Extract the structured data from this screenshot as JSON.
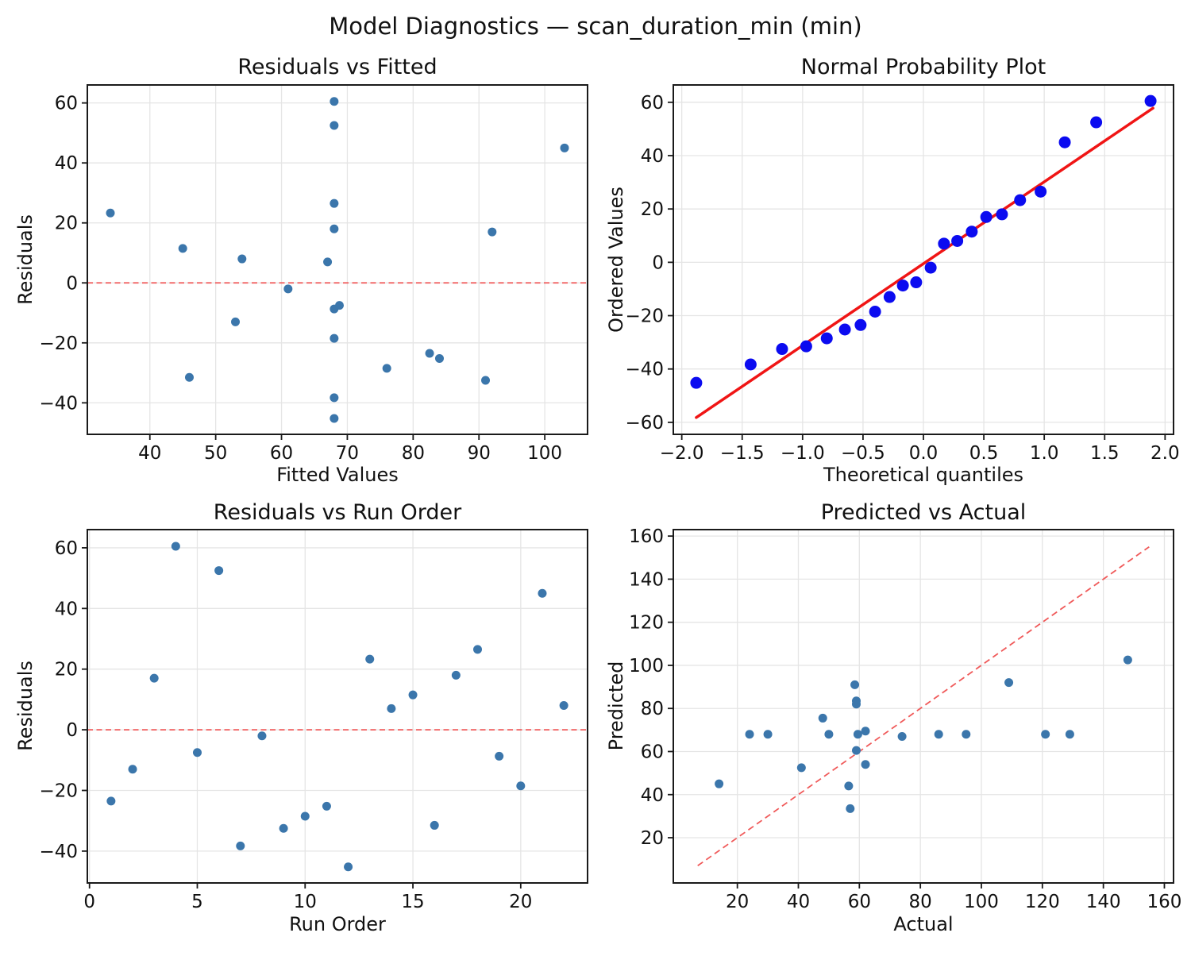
{
  "figure": {
    "suptitle": "Model Diagnostics — scan_duration_min (min)",
    "colors": {
      "background": "#ffffff",
      "scatter_point": "#3b76ab",
      "qq_point": "#0b0bf0",
      "fit_line_red": "#f01515",
      "dashed_red": "#f05a5a",
      "grid": "#e5e5e5",
      "spine": "#1a1a1a",
      "text": "#111111"
    }
  },
  "chart_data": [
    {
      "id": "residuals-vs-fitted",
      "type": "scatter",
      "title": "Residuals vs Fitted",
      "xlabel": "Fitted Values",
      "ylabel": "Residuals",
      "xlim": [
        30.5,
        106.5
      ],
      "ylim": [
        -50.5,
        66
      ],
      "grid": true,
      "xticks": [
        40,
        50,
        60,
        70,
        80,
        90,
        100
      ],
      "xtick_labels": [
        "40",
        "50",
        "60",
        "70",
        "80",
        "90",
        "100"
      ],
      "yticks": [
        -40,
        -20,
        0,
        20,
        40,
        60
      ],
      "ytick_labels": [
        "−40",
        "−20",
        "0",
        "20",
        "40",
        "60"
      ],
      "point_style": "scatter",
      "points": [
        [
          34,
          23.3
        ],
        [
          45,
          11.5
        ],
        [
          46,
          -31.5
        ],
        [
          53,
          -13
        ],
        [
          54,
          8
        ],
        [
          61,
          -2
        ],
        [
          67,
          7
        ],
        [
          68,
          60.5
        ],
        [
          68,
          52.5
        ],
        [
          68,
          26.5
        ],
        [
          68,
          18
        ],
        [
          68,
          -8.7
        ],
        [
          68.8,
          -7.5
        ],
        [
          68,
          -18.5
        ],
        [
          68,
          -38.3
        ],
        [
          68,
          -45.2
        ],
        [
          76,
          -28.5
        ],
        [
          82.5,
          -23.5
        ],
        [
          84,
          -25.2
        ],
        [
          91,
          -32.5
        ],
        [
          92,
          17
        ],
        [
          103,
          45
        ]
      ],
      "zero_line_y": 0
    },
    {
      "id": "normal-probability-plot",
      "type": "scatter",
      "title": "Normal Probability Plot",
      "xlabel": "Theoretical quantiles",
      "ylabel": "Ordered Values",
      "xlim": [
        -2.07,
        2.07
      ],
      "ylim": [
        -64.5,
        66.5
      ],
      "grid": true,
      "xticks": [
        -2.0,
        -1.5,
        -1.0,
        -0.5,
        0.0,
        0.5,
        1.0,
        1.5,
        2.0
      ],
      "xtick_labels": [
        "−2.0",
        "−1.5",
        "−1.0",
        "−0.5",
        "0.0",
        "0.5",
        "1.0",
        "1.5",
        "2.0"
      ],
      "yticks": [
        -60,
        -40,
        -20,
        0,
        20,
        40,
        60
      ],
      "ytick_labels": [
        "−60",
        "−40",
        "−20",
        "0",
        "20",
        "40",
        "60"
      ],
      "point_style": "qq",
      "points": [
        [
          -1.88,
          -45.2
        ],
        [
          -1.43,
          -38.3
        ],
        [
          -1.17,
          -32.5
        ],
        [
          -0.97,
          -31.5
        ],
        [
          -0.8,
          -28.5
        ],
        [
          -0.65,
          -25.2
        ],
        [
          -0.52,
          -23.5
        ],
        [
          -0.4,
          -18.5
        ],
        [
          -0.28,
          -13
        ],
        [
          -0.17,
          -8.7
        ],
        [
          -0.06,
          -7.5
        ],
        [
          0.06,
          -2
        ],
        [
          0.17,
          7
        ],
        [
          0.28,
          8
        ],
        [
          0.4,
          11.5
        ],
        [
          0.52,
          17
        ],
        [
          0.65,
          18
        ],
        [
          0.8,
          23.3
        ],
        [
          0.97,
          26.5
        ],
        [
          1.17,
          45
        ],
        [
          1.43,
          52.5
        ],
        [
          1.88,
          60.5
        ]
      ],
      "fit_line": {
        "x1": -1.88,
        "y1": -58.2,
        "x2": 1.9,
        "y2": 57.8
      }
    },
    {
      "id": "residuals-vs-run-order",
      "type": "scatter",
      "title": "Residuals vs Run Order",
      "xlabel": "Run Order",
      "ylabel": "Residuals",
      "xlim": [
        -0.1,
        23.1
      ],
      "ylim": [
        -50.5,
        66
      ],
      "grid": true,
      "xticks": [
        0,
        5,
        10,
        15,
        20
      ],
      "xtick_labels": [
        "0",
        "5",
        "10",
        "15",
        "20"
      ],
      "yticks": [
        -40,
        -20,
        0,
        20,
        40,
        60
      ],
      "ytick_labels": [
        "−40",
        "−20",
        "0",
        "20",
        "40",
        "60"
      ],
      "point_style": "scatter",
      "points": [
        [
          1,
          -23.5
        ],
        [
          2,
          -13
        ],
        [
          3,
          17
        ],
        [
          4,
          60.5
        ],
        [
          5,
          -7.5
        ],
        [
          6,
          52.5
        ],
        [
          7,
          -38.3
        ],
        [
          8,
          -2
        ],
        [
          9,
          -32.5
        ],
        [
          10,
          -28.5
        ],
        [
          11,
          -25.2
        ],
        [
          12,
          -45.2
        ],
        [
          13,
          23.3
        ],
        [
          14,
          7
        ],
        [
          15,
          11.5
        ],
        [
          16,
          -31.5
        ],
        [
          17,
          18
        ],
        [
          18,
          26.5
        ],
        [
          19,
          -8.7
        ],
        [
          20,
          -18.5
        ],
        [
          21,
          45
        ],
        [
          22,
          8
        ]
      ],
      "zero_line_y": 0
    },
    {
      "id": "predicted-vs-actual",
      "type": "scatter",
      "title": "Predicted vs Actual",
      "xlabel": "Actual",
      "ylabel": "Predicted",
      "xlim": [
        -1,
        163
      ],
      "ylim": [
        -1,
        163
      ],
      "grid": true,
      "xticks": [
        20,
        40,
        60,
        80,
        100,
        120,
        140,
        160
      ],
      "xtick_labels": [
        "20",
        "40",
        "60",
        "80",
        "100",
        "120",
        "140",
        "160"
      ],
      "yticks": [
        20,
        40,
        60,
        80,
        100,
        120,
        140,
        160
      ],
      "ytick_labels": [
        "20",
        "40",
        "60",
        "80",
        "100",
        "120",
        "140",
        "160"
      ],
      "point_style": "scatter",
      "points": [
        [
          14,
          45
        ],
        [
          24,
          68
        ],
        [
          30,
          68
        ],
        [
          41,
          52.5
        ],
        [
          48,
          75.5
        ],
        [
          50,
          68
        ],
        [
          56.5,
          44
        ],
        [
          57,
          33.5
        ],
        [
          58.5,
          91
        ],
        [
          59,
          83.5
        ],
        [
          59,
          82
        ],
        [
          59.5,
          68
        ],
        [
          59,
          60.5
        ],
        [
          62,
          69.5
        ],
        [
          62,
          54
        ],
        [
          74,
          67
        ],
        [
          86,
          68
        ],
        [
          95,
          68
        ],
        [
          109,
          92
        ],
        [
          121,
          68
        ],
        [
          129,
          68
        ],
        [
          148,
          102.5
        ]
      ],
      "identity_line": {
        "x1": 7,
        "y1": 7,
        "x2": 155,
        "y2": 155
      }
    }
  ]
}
